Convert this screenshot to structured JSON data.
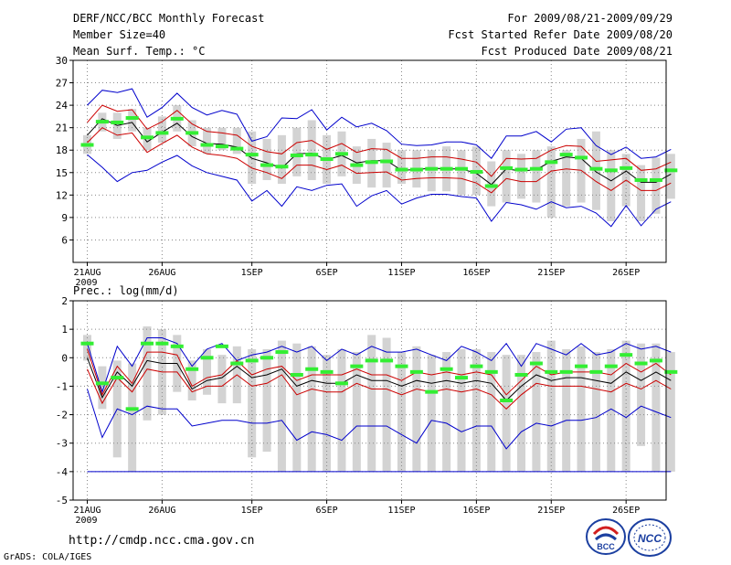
{
  "header": {
    "title": "DERF/NCC/BCC Monthly Forecast",
    "member_size": "Member Size=40",
    "variable": "Mean Surf. Temp.: °C",
    "forecast_period": "For 2009/08/21-2009/09/29",
    "fcst_started": "Fcst Started Refer Date 2009/08/20",
    "fcst_produced": "Fcst Produced Date 2009/08/21"
  },
  "footer": {
    "url": "http://cmdp.ncc.cma.gov.cn",
    "grads": "GrADS: COLA/IGES",
    "logo_left_text": "BCC",
    "logo_right_text": "NCC"
  },
  "colors": {
    "envelope": "#0000cc",
    "spread": "#cc0000",
    "mean": "#000000",
    "box": "#d3d3d3",
    "marker": "#33ee33",
    "grid": "#888888"
  },
  "chart_data": [
    {
      "type": "line",
      "title": "Mean Surf. Temp.: °C",
      "xlabel": "",
      "ylabel": "°C",
      "ylim": [
        3,
        30
      ],
      "yticks": [
        30,
        27,
        24,
        21,
        18,
        15,
        12,
        9,
        6
      ],
      "xticks": [
        {
          "day": 0,
          "label": "21AUG",
          "sublabel": "2009"
        },
        {
          "day": 5,
          "label": "26AUG"
        },
        {
          "day": 11,
          "label": "1SEP"
        },
        {
          "day": 16,
          "label": "6SEP"
        },
        {
          "day": 21,
          "label": "11SEP"
        },
        {
          "day": 26,
          "label": "16SEP"
        },
        {
          "day": 31,
          "label": "21SEP"
        },
        {
          "day": 36,
          "label": "26SEP"
        }
      ],
      "box_lo": [
        17.5,
        20.5,
        19.5,
        20.5,
        18.0,
        19.0,
        20.5,
        18.5,
        17.5,
        18.0,
        17.5,
        13.5,
        14.0,
        13.5,
        14.5,
        14.0,
        13.5,
        14.5,
        13.5,
        13.0,
        13.0,
        13.5,
        13.0,
        12.5,
        12.5,
        12.0,
        12.0,
        10.5,
        11.0,
        11.5,
        11.0,
        9.0,
        10.5,
        11.0,
        10.0,
        8.5,
        10.5,
        8.5,
        9.5,
        11.5
      ],
      "box_hi": [
        20.0,
        23.0,
        23.0,
        23.5,
        21.0,
        22.5,
        24.0,
        22.0,
        21.0,
        21.0,
        21.0,
        20.5,
        19.5,
        20.0,
        21.0,
        22.0,
        20.0,
        20.5,
        18.5,
        19.5,
        19.0,
        18.0,
        18.0,
        18.0,
        18.5,
        18.0,
        18.5,
        16.5,
        18.0,
        17.5,
        18.0,
        18.5,
        18.0,
        19.5,
        20.5,
        18.0,
        17.5,
        16.0,
        17.0,
        17.5
      ],
      "markers": [
        18.7,
        21.8,
        21.7,
        22.3,
        19.7,
        20.3,
        22.2,
        20.3,
        18.7,
        18.5,
        18.2,
        17.4,
        16.0,
        15.8,
        17.3,
        17.4,
        16.8,
        17.5,
        16.0,
        16.4,
        16.5,
        15.4,
        15.4,
        15.5,
        15.5,
        15.5,
        15.1,
        13.2,
        15.6,
        15.4,
        15.5,
        16.4,
        17.4,
        17.0,
        15.5,
        15.3,
        15.6,
        14.0,
        14.0,
        15.3
      ],
      "series": [
        {
          "name": "ensemble max",
          "role": "envelope",
          "values": [
            24.0,
            26.0,
            25.7,
            26.2,
            22.4,
            23.7,
            25.6,
            23.7,
            22.7,
            23.3,
            22.8,
            19.2,
            19.8,
            22.3,
            22.2,
            23.4,
            20.7,
            22.4,
            21.1,
            21.6,
            20.6,
            18.8,
            18.6,
            18.7,
            19.1,
            19.1,
            18.7,
            16.9,
            19.9,
            19.9,
            20.5,
            19.1,
            20.8,
            21.0,
            18.6,
            17.4,
            18.4,
            16.9,
            17.1,
            18.1
          ]
        },
        {
          "name": "upper spread",
          "role": "spread",
          "values": [
            21.7,
            24.0,
            23.2,
            23.4,
            20.8,
            21.8,
            23.3,
            21.5,
            20.5,
            20.3,
            20.0,
            18.5,
            17.8,
            17.5,
            19.0,
            19.3,
            18.1,
            18.9,
            17.7,
            18.2,
            18.1,
            16.9,
            16.9,
            17.1,
            17.1,
            16.8,
            16.4,
            14.5,
            16.9,
            16.8,
            16.9,
            18.0,
            18.6,
            18.5,
            16.5,
            16.7,
            16.9,
            15.3,
            15.5,
            16.4
          ]
        },
        {
          "name": "ensemble mean",
          "role": "mean",
          "values": [
            20.0,
            22.2,
            21.3,
            21.7,
            19.1,
            20.4,
            21.6,
            19.8,
            18.9,
            18.8,
            18.4,
            16.9,
            16.3,
            15.6,
            17.5,
            17.6,
            16.7,
            17.3,
            16.3,
            16.6,
            16.6,
            15.3,
            15.4,
            15.6,
            15.5,
            15.5,
            14.9,
            13.4,
            15.5,
            15.2,
            15.4,
            16.5,
            17.1,
            16.9,
            15.1,
            13.9,
            15.2,
            13.7,
            13.7,
            14.8
          ]
        },
        {
          "name": "lower spread",
          "role": "spread",
          "values": [
            19.0,
            21.0,
            20.0,
            20.3,
            17.7,
            18.9,
            20.0,
            18.4,
            17.5,
            17.3,
            16.9,
            15.6,
            15.0,
            14.2,
            16.0,
            16.0,
            15.4,
            16.0,
            14.9,
            15.0,
            15.1,
            14.0,
            14.2,
            14.3,
            14.3,
            14.2,
            13.6,
            12.3,
            14.2,
            13.8,
            13.8,
            15.2,
            15.5,
            15.3,
            13.8,
            12.6,
            14.0,
            12.6,
            12.6,
            13.6
          ]
        },
        {
          "name": "ensemble min",
          "role": "envelope",
          "values": [
            17.4,
            15.7,
            13.8,
            15.0,
            15.3,
            16.4,
            17.3,
            15.9,
            15.0,
            14.5,
            14.0,
            11.2,
            12.6,
            10.5,
            13.1,
            12.6,
            13.3,
            13.5,
            10.5,
            11.9,
            12.6,
            10.8,
            11.6,
            12.1,
            12.1,
            11.8,
            11.6,
            8.5,
            11.0,
            10.7,
            10.1,
            11.1,
            10.3,
            10.5,
            9.6,
            7.8,
            10.6,
            7.9,
            10.1,
            11.1
          ]
        }
      ]
    },
    {
      "type": "line",
      "title": "Prec.: log(mm/d)",
      "xlabel": "",
      "ylabel": "log(mm/d)",
      "ylim": [
        -5,
        2
      ],
      "yticks": [
        2,
        1,
        0,
        -1,
        -2,
        -3,
        -4,
        -5
      ],
      "xticks": [
        {
          "day": 0,
          "label": "21AUG",
          "sublabel": "2009"
        },
        {
          "day": 5,
          "label": "26AUG"
        },
        {
          "day": 11,
          "label": "1SEP"
        },
        {
          "day": 16,
          "label": "6SEP"
        },
        {
          "day": 21,
          "label": "11SEP"
        },
        {
          "day": 26,
          "label": "16SEP"
        },
        {
          "day": 31,
          "label": "21SEP"
        },
        {
          "day": 36,
          "label": "26SEP"
        }
      ],
      "box_lo": [
        -0.1,
        -1.8,
        -3.5,
        -4.0,
        -2.2,
        -2.0,
        -1.2,
        -1.5,
        -1.3,
        -1.6,
        -1.6,
        -3.5,
        -3.3,
        -4.0,
        -4.0,
        -4.0,
        -4.0,
        -4.0,
        -4.0,
        -4.0,
        -4.0,
        -4.0,
        -4.0,
        -4.0,
        -4.0,
        -4.0,
        -4.0,
        -4.0,
        -4.0,
        -4.0,
        -4.0,
        -4.0,
        -4.0,
        -4.0,
        -4.0,
        -4.0,
        -4.0,
        -3.1,
        -4.0,
        -4.0
      ],
      "box_hi": [
        0.8,
        -0.3,
        -0.1,
        -0.2,
        1.1,
        1.0,
        0.8,
        -0.1,
        0.3,
        0.1,
        0.4,
        0.3,
        0.3,
        0.6,
        0.5,
        0.4,
        0.1,
        0.3,
        0.2,
        0.8,
        0.7,
        0.2,
        0.4,
        0.1,
        0.2,
        0.3,
        0.3,
        0.2,
        0.1,
        0.1,
        0.2,
        0.6,
        0.3,
        0.4,
        0.2,
        0.3,
        0.6,
        0.5,
        0.5,
        0.2
      ],
      "markers": [
        0.5,
        -0.9,
        -0.7,
        -1.8,
        0.5,
        0.5,
        0.4,
        -0.4,
        0.0,
        0.4,
        -0.2,
        -0.1,
        0.0,
        0.2,
        -0.6,
        -0.4,
        -0.5,
        -0.9,
        -0.3,
        -0.1,
        -0.1,
        -0.3,
        -0.5,
        -1.2,
        -0.4,
        -0.7,
        -0.3,
        -0.5,
        -1.5,
        -0.6,
        -0.2,
        -0.5,
        -0.5,
        -0.3,
        -0.5,
        -0.3,
        0.1,
        -0.2,
        -0.1,
        -0.5
      ],
      "series": [
        {
          "name": "ensemble max",
          "role": "envelope",
          "values": [
            0.5,
            -1.2,
            0.4,
            -0.3,
            0.7,
            0.7,
            0.5,
            -0.3,
            0.3,
            0.5,
            -0.1,
            0.1,
            0.2,
            0.4,
            0.2,
            0.4,
            -0.1,
            0.3,
            0.1,
            0.4,
            0.2,
            0.2,
            0.3,
            0.1,
            -0.1,
            0.4,
            0.2,
            -0.1,
            0.5,
            -0.3,
            0.5,
            0.3,
            0.1,
            0.5,
            0.1,
            0.2,
            0.5,
            0.3,
            0.4,
            0.2
          ]
        },
        {
          "name": "upper spread",
          "role": "spread",
          "values": [
            0.3,
            -1.3,
            -0.3,
            -0.9,
            0.2,
            0.2,
            0.1,
            -1.0,
            -0.7,
            -0.6,
            -0.1,
            -0.6,
            -0.4,
            -0.3,
            -0.8,
            -0.6,
            -0.6,
            -0.6,
            -0.4,
            -0.6,
            -0.6,
            -0.8,
            -0.5,
            -0.6,
            -0.5,
            -0.6,
            -0.5,
            -0.6,
            -1.3,
            -0.8,
            -0.3,
            -0.6,
            -0.5,
            -0.5,
            -0.5,
            -0.6,
            -0.2,
            -0.5,
            -0.2,
            -0.6
          ]
        },
        {
          "name": "ensemble mean",
          "role": "mean",
          "values": [
            0.0,
            -1.4,
            -0.5,
            -1.0,
            -0.1,
            -0.2,
            -0.2,
            -1.1,
            -0.8,
            -0.7,
            -0.3,
            -0.7,
            -0.6,
            -0.4,
            -1.0,
            -0.8,
            -0.9,
            -0.9,
            -0.6,
            -0.8,
            -0.8,
            -1.0,
            -0.8,
            -0.9,
            -0.8,
            -0.9,
            -0.8,
            -0.9,
            -1.5,
            -1.0,
            -0.6,
            -0.8,
            -0.7,
            -0.7,
            -0.8,
            -0.9,
            -0.5,
            -0.8,
            -0.5,
            -0.8
          ]
        },
        {
          "name": "lower spread",
          "role": "spread",
          "values": [
            -0.4,
            -1.6,
            -0.7,
            -1.2,
            -0.4,
            -0.5,
            -0.5,
            -1.2,
            -1.0,
            -1.0,
            -0.6,
            -1.0,
            -0.9,
            -0.6,
            -1.3,
            -1.1,
            -1.2,
            -1.2,
            -0.9,
            -1.1,
            -1.1,
            -1.3,
            -1.1,
            -1.2,
            -1.1,
            -1.2,
            -1.1,
            -1.3,
            -1.8,
            -1.3,
            -0.9,
            -1.0,
            -1.0,
            -1.0,
            -1.1,
            -1.2,
            -0.9,
            -1.1,
            -0.8,
            -1.1
          ]
        },
        {
          "name": "ensemble min",
          "role": "envelope",
          "values": [
            -1.1,
            -2.8,
            -1.8,
            -2.0,
            -1.7,
            -1.8,
            -1.8,
            -2.4,
            -2.3,
            -2.2,
            -2.2,
            -2.3,
            -2.3,
            -2.2,
            -2.9,
            -2.6,
            -2.7,
            -2.9,
            -2.4,
            -2.4,
            -2.4,
            -2.7,
            -3.0,
            -2.2,
            -2.3,
            -2.6,
            -2.4,
            -2.4,
            -3.2,
            -2.6,
            -2.3,
            -2.4,
            -2.2,
            -2.2,
            -2.1,
            -1.8,
            -2.1,
            -1.7,
            -1.9,
            -2.1
          ]
        }
      ],
      "baseline": {
        "name": "lower bound",
        "value": -4
      }
    }
  ]
}
